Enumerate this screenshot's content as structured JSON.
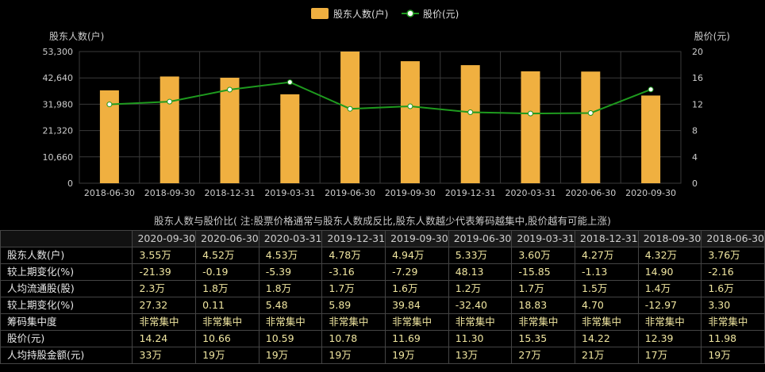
{
  "legend": {
    "bar_label": "股东人数(户)",
    "line_label": "股价(元)"
  },
  "colors": {
    "bar": "#f0b040",
    "line": "#1e9a1e",
    "grid": "#3a3a3a",
    "axis_text": "#cccccc"
  },
  "caption": "股东人数与股价比( 注:股票价格通常与股东人数成反比,股东人数越少代表筹码越集中,股价越有可能上涨)",
  "chart_data": {
    "type": "bar",
    "categories": [
      "2018-06-30",
      "2018-09-30",
      "2018-12-31",
      "2019-03-31",
      "2019-06-30",
      "2019-09-30",
      "2019-12-31",
      "2020-03-31",
      "2020-06-30",
      "2020-09-30"
    ],
    "series": [
      {
        "name": "股东人数(户)",
        "type": "bar",
        "axis": "left",
        "values": [
          37600,
          43200,
          42700,
          36000,
          53300,
          49400,
          47800,
          45300,
          45200,
          35500
        ]
      },
      {
        "name": "股价(元)",
        "type": "line",
        "axis": "right",
        "values": [
          11.98,
          12.39,
          14.22,
          15.35,
          11.3,
          11.69,
          10.78,
          10.59,
          10.66,
          14.24
        ]
      }
    ],
    "ylabel_left": "股东人数(户)",
    "ylabel_right": "股价(元)",
    "ylim_left": [
      0,
      53300
    ],
    "ylim_right": [
      0,
      20
    ],
    "yticks_left": [
      "0",
      "10,660",
      "21,320",
      "31,980",
      "42,640",
      "53,300"
    ],
    "yticks_right": [
      "0",
      "4",
      "8",
      "12",
      "16",
      "20"
    ],
    "grid": true,
    "legend_position": "top-center"
  },
  "table": {
    "columns": [
      "2020-09-30",
      "2020-06-30",
      "2020-03-31",
      "2019-12-31",
      "2019-09-30",
      "2019-06-30",
      "2019-03-31",
      "2018-12-31",
      "2018-09-30",
      "2018-06-30"
    ],
    "rows": [
      {
        "label": "股东人数(户)",
        "values": [
          "3.55万",
          "4.52万",
          "4.53万",
          "4.78万",
          "4.94万",
          "5.33万",
          "3.60万",
          "4.27万",
          "4.32万",
          "3.76万"
        ]
      },
      {
        "label": "较上期变化(%)",
        "values": [
          "-21.39",
          "-0.19",
          "-5.39",
          "-3.16",
          "-7.29",
          "48.13",
          "-15.85",
          "-1.13",
          "14.90",
          "-2.16"
        ]
      },
      {
        "label": "人均流通股(股)",
        "values": [
          "2.3万",
          "1.8万",
          "1.8万",
          "1.7万",
          "1.6万",
          "1.2万",
          "1.7万",
          "1.5万",
          "1.4万",
          "1.6万"
        ]
      },
      {
        "label": "较上期变化(%)",
        "values": [
          "27.32",
          "0.11",
          "5.48",
          "5.89",
          "39.84",
          "-32.40",
          "18.83",
          "4.70",
          "-12.97",
          "3.30"
        ]
      },
      {
        "label": "筹码集中度",
        "values": [
          "非常集中",
          "非常集中",
          "非常集中",
          "非常集中",
          "非常集中",
          "非常集中",
          "非常集中",
          "非常集中",
          "非常集中",
          "非常集中"
        ]
      },
      {
        "label": "股价(元)",
        "values": [
          "14.24",
          "10.66",
          "10.59",
          "10.78",
          "11.69",
          "11.30",
          "15.35",
          "14.22",
          "12.39",
          "11.98"
        ]
      },
      {
        "label": "人均持股金额(元)",
        "values": [
          "33万",
          "19万",
          "19万",
          "19万",
          "19万",
          "13万",
          "27万",
          "21万",
          "17万",
          "19万"
        ]
      }
    ]
  }
}
